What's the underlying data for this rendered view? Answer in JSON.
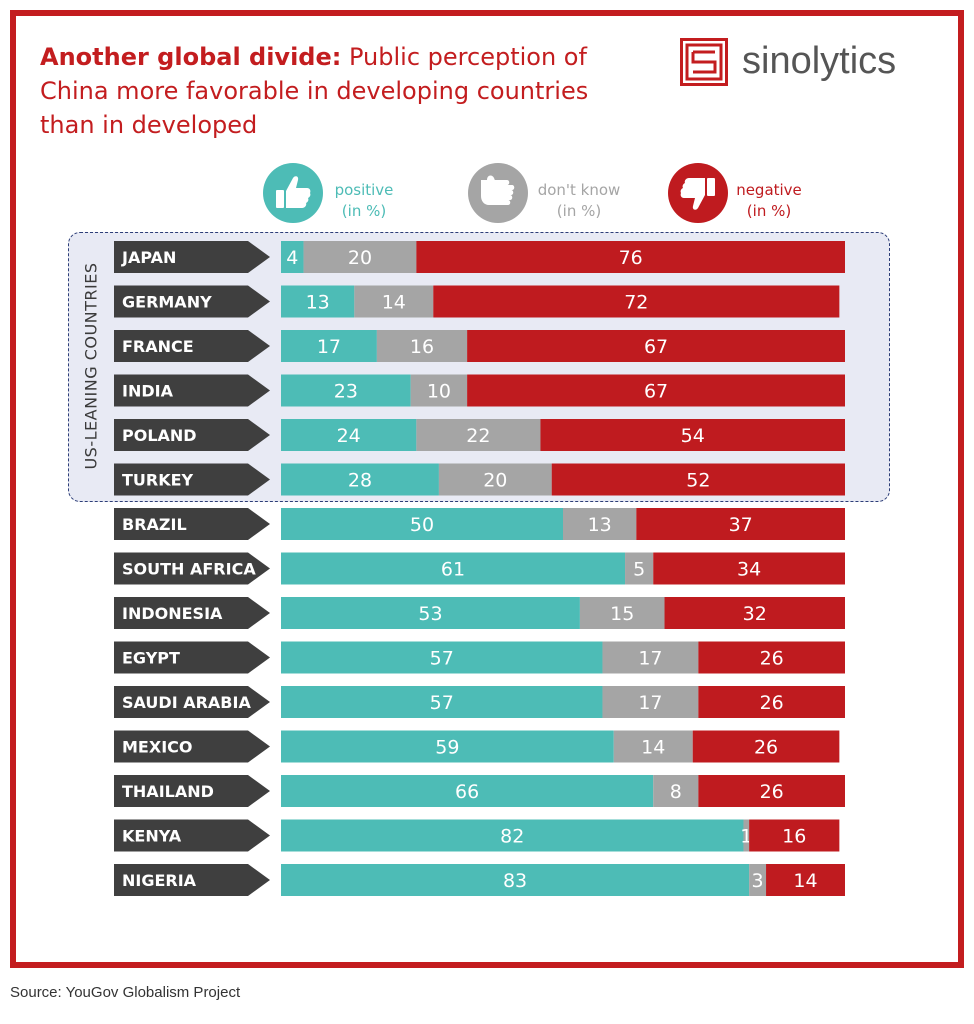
{
  "title": {
    "bold": "Another global divide:",
    "rest": "Public perception of China more favorable in developing countries than in developed"
  },
  "brand": {
    "name": "sinolytics",
    "color": "#c31d1f"
  },
  "source": "Source: YouGov Globalism Project",
  "colors": {
    "positive": "#4dbcb6",
    "dont_know": "#a5a5a5",
    "negative": "#bf1b1f",
    "tag": "#3f3f3f",
    "group_border": "#2d3e78"
  },
  "legend": [
    {
      "key": "positive",
      "label": "positive",
      "unit": "(in %)",
      "icon": "thumbs-up-icon",
      "color": "#4dbcb6"
    },
    {
      "key": "dont_know",
      "label": "don't know",
      "unit": "(in %)",
      "icon": "hand-neutral-icon",
      "color": "#a5a5a5"
    },
    {
      "key": "negative",
      "label": "negative",
      "unit": "(in %)",
      "icon": "thumbs-down-icon",
      "color": "#bf1b1f"
    }
  ],
  "group_label": "US-LEANING COUNTRIES",
  "chart_data": {
    "type": "bar",
    "orientation": "horizontal",
    "stacked": true,
    "xlim": [
      0,
      100
    ],
    "categories": [
      "JAPAN",
      "GERMANY",
      "FRANCE",
      "INDIA",
      "POLAND",
      "TURKEY",
      "BRAZIL",
      "SOUTH AFRICA",
      "INDONESIA",
      "EGYPT",
      "SAUDI ARABIA",
      "MEXICO",
      "THAILAND",
      "KENYA",
      "NIGERIA"
    ],
    "series": [
      {
        "name": "positive",
        "values": [
          4,
          13,
          17,
          23,
          24,
          28,
          50,
          61,
          53,
          57,
          57,
          59,
          66,
          82,
          83
        ]
      },
      {
        "name": "don't know",
        "values": [
          20,
          14,
          16,
          10,
          22,
          20,
          13,
          5,
          15,
          17,
          17,
          14,
          8,
          1,
          3
        ]
      },
      {
        "name": "negative",
        "values": [
          76,
          72,
          67,
          67,
          54,
          52,
          37,
          34,
          32,
          26,
          26,
          26,
          26,
          16,
          14
        ]
      }
    ],
    "group": {
      "label": "US-LEANING COUNTRIES",
      "categories": [
        "JAPAN",
        "GERMANY",
        "FRANCE",
        "INDIA",
        "POLAND",
        "TURKEY"
      ]
    },
    "grid": false
  }
}
